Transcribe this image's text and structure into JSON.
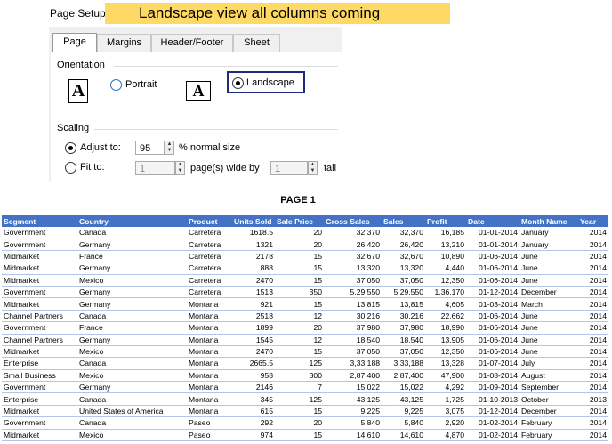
{
  "header": {
    "label": "Page Setup",
    "banner": "Landscape view all columns coming"
  },
  "dialog": {
    "tabs": [
      "Page",
      "Margins",
      "Header/Footer",
      "Sheet"
    ],
    "orientation": {
      "title": "Orientation",
      "icon_letter": "A",
      "portrait": "Portrait",
      "landscape": "Landscape"
    },
    "scaling": {
      "title": "Scaling",
      "adjust_to": "Adjust to:",
      "adjust_value": "95",
      "adjust_suffix": "% normal size",
      "fit_to": "Fit to:",
      "fit_wide": "1",
      "wide_label": "page(s) wide by",
      "fit_tall": "1",
      "tall_label": "tall"
    }
  },
  "page_title": "PAGE 1",
  "table": {
    "columns": [
      "Segment",
      "Country",
      "Product",
      "Units Sold",
      "Sale Price",
      "Gross Sales",
      "Sales",
      "Profit",
      "Date",
      "Month Name",
      "Year"
    ],
    "rows": [
      [
        "Government",
        "Canada",
        "Carretera",
        "1618.5",
        "20",
        "32,370",
        "32,370",
        "16,185",
        "01-01-2014",
        "January",
        "2014"
      ],
      [
        "Government",
        "Germany",
        "Carretera",
        "1321",
        "20",
        "26,420",
        "26,420",
        "13,210",
        "01-01-2014",
        "January",
        "2014"
      ],
      [
        "Midmarket",
        "France",
        "Carretera",
        "2178",
        "15",
        "32,670",
        "32,670",
        "10,890",
        "01-06-2014",
        "June",
        "2014"
      ],
      [
        "Midmarket",
        "Germany",
        "Carretera",
        "888",
        "15",
        "13,320",
        "13,320",
        "4,440",
        "01-06-2014",
        "June",
        "2014"
      ],
      [
        "Midmarket",
        "Mexico",
        "Carretera",
        "2470",
        "15",
        "37,050",
        "37,050",
        "12,350",
        "01-06-2014",
        "June",
        "2014"
      ],
      [
        "Government",
        "Germany",
        "Carretera",
        "1513",
        "350",
        "5,29,550",
        "5,29,550",
        "1,36,170",
        "01-12-2014",
        "December",
        "2014"
      ],
      [
        "Midmarket",
        "Germany",
        "Montana",
        "921",
        "15",
        "13,815",
        "13,815",
        "4,605",
        "01-03-2014",
        "March",
        "2014"
      ],
      [
        "Channel Partners",
        "Canada",
        "Montana",
        "2518",
        "12",
        "30,216",
        "30,216",
        "22,662",
        "01-06-2014",
        "June",
        "2014"
      ],
      [
        "Government",
        "France",
        "Montana",
        "1899",
        "20",
        "37,980",
        "37,980",
        "18,990",
        "01-06-2014",
        "June",
        "2014"
      ],
      [
        "Channel Partners",
        "Germany",
        "Montana",
        "1545",
        "12",
        "18,540",
        "18,540",
        "13,905",
        "01-06-2014",
        "June",
        "2014"
      ],
      [
        "Midmarket",
        "Mexico",
        "Montana",
        "2470",
        "15",
        "37,050",
        "37,050",
        "12,350",
        "01-06-2014",
        "June",
        "2014"
      ],
      [
        "Enterprise",
        "Canada",
        "Montana",
        "2665.5",
        "125",
        "3,33,188",
        "3,33,188",
        "13,328",
        "01-07-2014",
        "July",
        "2014"
      ],
      [
        "Small Business",
        "Mexico",
        "Montana",
        "958",
        "300",
        "2,87,400",
        "2,87,400",
        "47,900",
        "01-08-2014",
        "August",
        "2014"
      ],
      [
        "Government",
        "Germany",
        "Montana",
        "2146",
        "7",
        "15,022",
        "15,022",
        "4,292",
        "01-09-2014",
        "September",
        "2014"
      ],
      [
        "Enterprise",
        "Canada",
        "Montana",
        "345",
        "125",
        "43,125",
        "43,125",
        "1,725",
        "01-10-2013",
        "October",
        "2013"
      ],
      [
        "Midmarket",
        "United States of America",
        "Montana",
        "615",
        "15",
        "9,225",
        "9,225",
        "3,075",
        "01-12-2014",
        "December",
        "2014"
      ],
      [
        "Government",
        "Canada",
        "Paseo",
        "292",
        "20",
        "5,840",
        "5,840",
        "2,920",
        "01-02-2014",
        "February",
        "2014"
      ],
      [
        "Midmarket",
        "Mexico",
        "Paseo",
        "974",
        "15",
        "14,610",
        "14,610",
        "4,870",
        "01-02-2014",
        "February",
        "2014"
      ]
    ]
  }
}
